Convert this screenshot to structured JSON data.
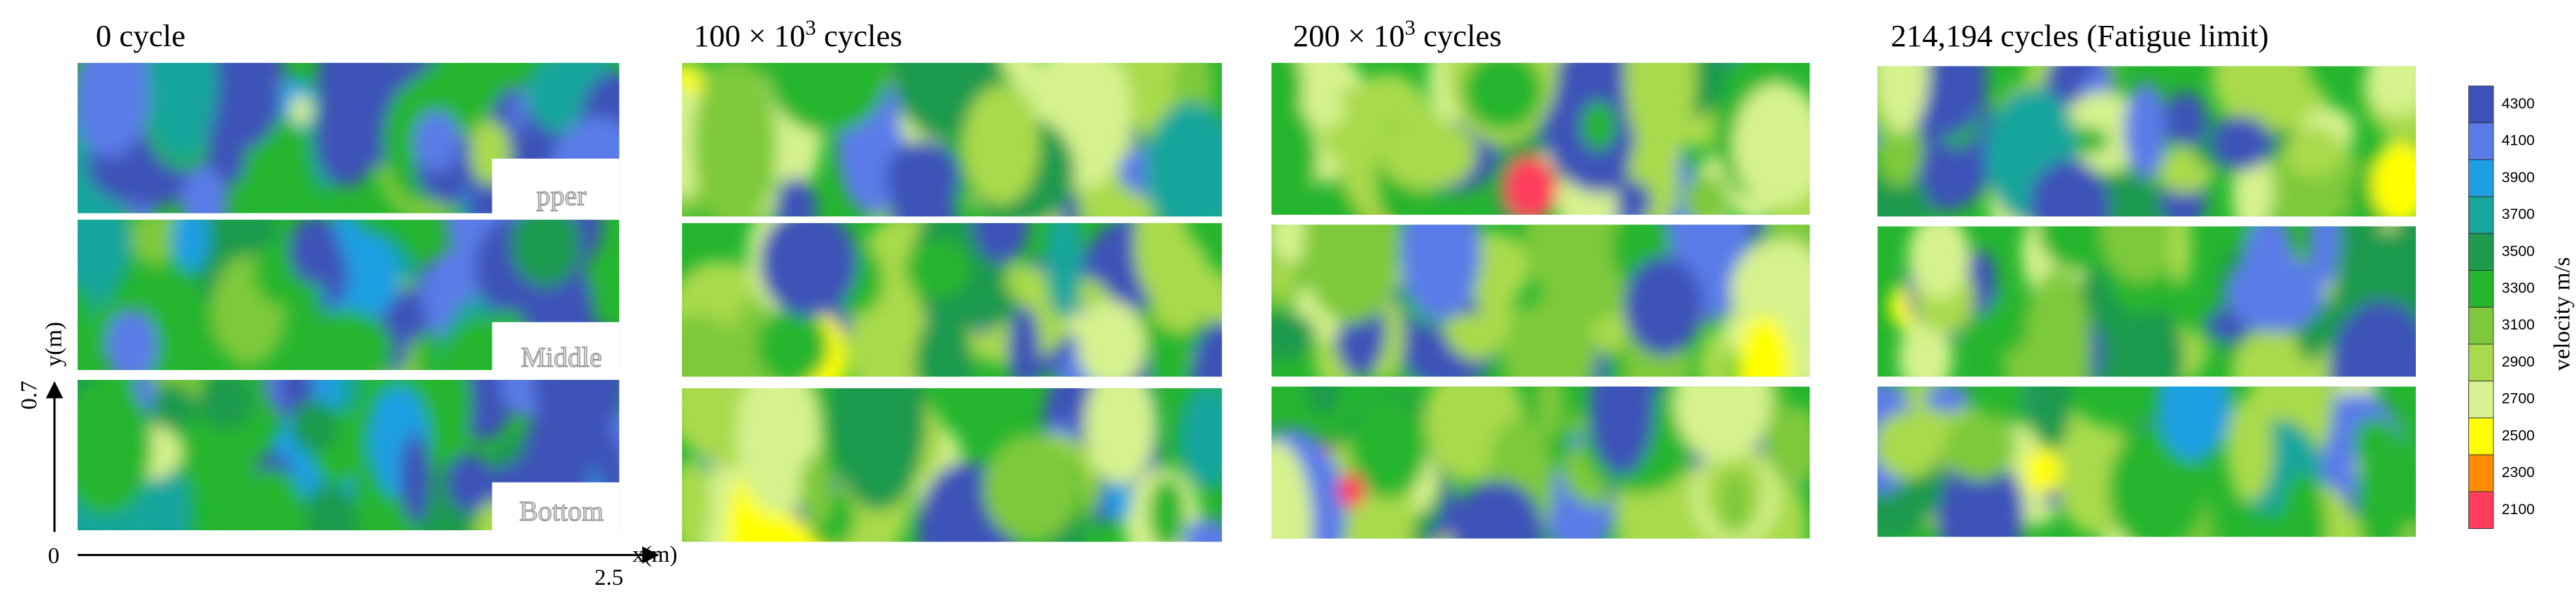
{
  "panels": [
    {
      "title": {
        "base": "0 cycle"
      },
      "layer_labels": [
        "pper",
        "Middle",
        "Bottom"
      ]
    },
    {
      "title": {
        "base": "100 × 10",
        "exponent": "3",
        "suffix": " cycles"
      }
    },
    {
      "title": {
        "base": "200 × 10",
        "exponent": "3",
        "suffix": " cycles"
      }
    },
    {
      "title": {
        "base": "214,194 cycles (Fatigue limit)"
      }
    }
  ],
  "axes": {
    "y_label": "y(m)",
    "y_max": "0.7",
    "origin": "0",
    "x_label": "x(m)",
    "x_max": "2.5"
  },
  "colorbar": {
    "label": "velocity m/s",
    "ticks": [
      4300,
      4100,
      3900,
      3700,
      3500,
      3300,
      3100,
      2900,
      2700,
      2500,
      2300,
      2100
    ],
    "colors": [
      "#3d52b8",
      "#5a7ce8",
      "#1f9fe3",
      "#17a59c",
      "#1f9a4e",
      "#25b52f",
      "#7ec93b",
      "#a9da4c",
      "#d6f28e",
      "#ffff00",
      "#ff8c00",
      "#ff3d5c"
    ]
  }
}
